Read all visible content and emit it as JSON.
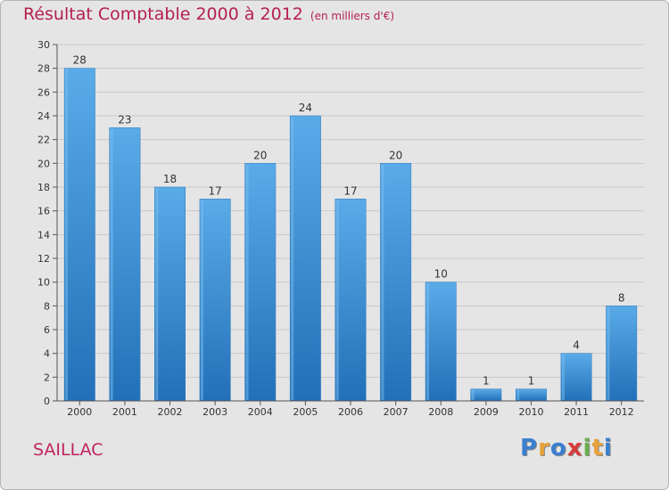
{
  "chart_data": {
    "type": "bar",
    "title": "Résultat Comptable 2000 à 2012",
    "subtitle": "(en milliers d'€)",
    "categories": [
      "2000",
      "2001",
      "2002",
      "2003",
      "2004",
      "2005",
      "2006",
      "2007",
      "2008",
      "2009",
      "2010",
      "2011",
      "2012"
    ],
    "values": [
      28,
      23,
      18,
      17,
      20,
      24,
      17,
      20,
      10,
      1,
      1,
      4,
      8
    ],
    "ylim": [
      0,
      30
    ],
    "yticks": [
      0,
      2,
      4,
      6,
      8,
      10,
      12,
      14,
      16,
      18,
      20,
      22,
      24,
      26,
      28,
      30
    ],
    "xlabel": "",
    "ylabel": "",
    "grid": true,
    "bar_color": "#3d8fd6",
    "bar_color_light": "#5aabe8",
    "bar_color_dark": "#2270b8"
  },
  "commune": "SAILLAC",
  "logo": {
    "letters": [
      "P",
      "r",
      "o",
      "x",
      "i",
      "t",
      "i"
    ],
    "colors": [
      "#3a7fd0",
      "#e8a23a",
      "#3a7fd0",
      "#d93b3b",
      "#6ab04c",
      "#e8a23a",
      "#3a7fd0"
    ]
  }
}
